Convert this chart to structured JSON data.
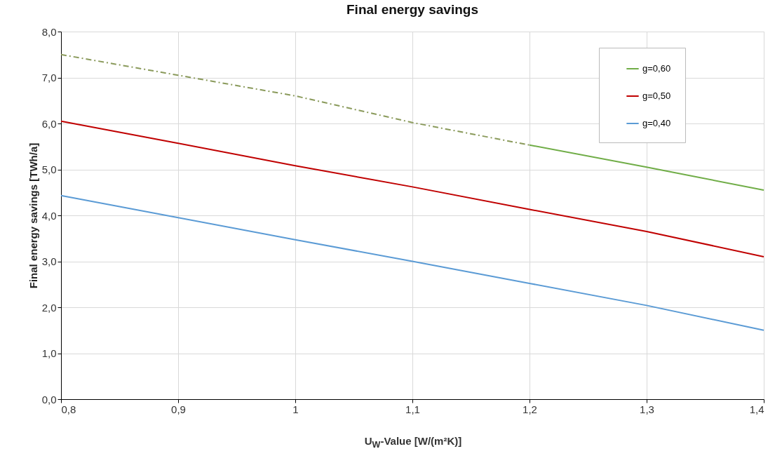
{
  "chart_data": {
    "type": "line",
    "title": "Final energy savings",
    "xlabel": "U$_{W}$-Value [W/(m²K)]",
    "ylabel": "Final energy savings [TWh/a]",
    "x": [
      0.8,
      0.9,
      1.0,
      1.1,
      1.2,
      1.3,
      1.4
    ],
    "series": [
      {
        "color": "#8a9a5b",
        "line_style": "dashed",
        "x": [
          0.8,
          0.9,
          1.0,
          1.1,
          1.2
        ],
        "values": [
          7.5,
          7.05,
          6.6,
          6.02,
          5.53
        ]
      },
      {
        "name": "g=0,60",
        "color": "#70ad47",
        "x": [
          1.2,
          1.3,
          1.4
        ],
        "values": [
          5.53,
          5.05,
          4.55
        ]
      },
      {
        "name": "g=0,50",
        "color": "#c00000",
        "values": [
          6.05,
          5.57,
          5.08,
          4.62,
          4.13,
          3.65,
          3.1
        ]
      },
      {
        "name": "g=0,40",
        "color": "#5b9bd5",
        "values": [
          4.43,
          3.95,
          3.47,
          3.0,
          2.52,
          2.04,
          1.5
        ]
      }
    ],
    "xlim": [
      0.8,
      1.4
    ],
    "xticks": [
      {
        "value": 0.8,
        "label": "0,8"
      },
      {
        "value": 0.9,
        "label": "0,9"
      },
      1,
      {
        "value": 1.1,
        "label": "1,1"
      },
      {
        "value": 1.2,
        "label": "1,2"
      },
      {
        "value": 1.3,
        "label": "1,3"
      },
      {
        "value": 1.4,
        "label": "1,4"
      }
    ],
    "ylim": [
      0,
      8
    ],
    "yticks": [
      {
        "value": 0,
        "label": "0,0"
      },
      {
        "value": 1,
        "label": "1,0"
      },
      {
        "value": 2,
        "label": "2,0"
      },
      {
        "value": 3,
        "label": "3,0"
      },
      {
        "value": 4,
        "label": "4,0"
      },
      {
        "value": 5,
        "label": "5,0"
      },
      {
        "value": 6,
        "label": "6,0"
      },
      {
        "value": 7,
        "label": "7,0"
      },
      {
        "value": 8,
        "label": "8,0"
      }
    ],
    "grid": true,
    "legend": "top right",
    "marker": "none",
    "line_style": "solid"
  }
}
